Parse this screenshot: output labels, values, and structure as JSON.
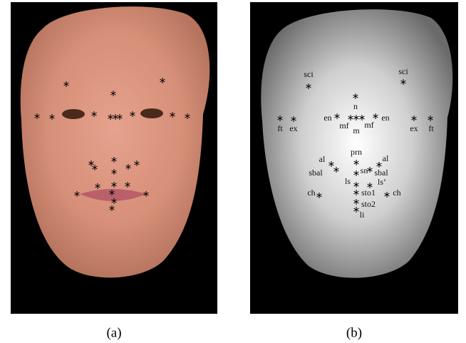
{
  "figure": {
    "panels": [
      {
        "caption": "(a)"
      },
      {
        "caption": "(b)",
        "landmarks": [
          "sci",
          "sci",
          "n",
          "en",
          "en",
          "mf",
          "mf",
          "m",
          "ft",
          "ex",
          "ex",
          "ft",
          "prn",
          "al",
          "al",
          "sbal",
          "sn",
          "sbal",
          "ls",
          "ls’",
          "ch",
          "sto1",
          "ch",
          "sto2",
          "li"
        ]
      }
    ]
  }
}
